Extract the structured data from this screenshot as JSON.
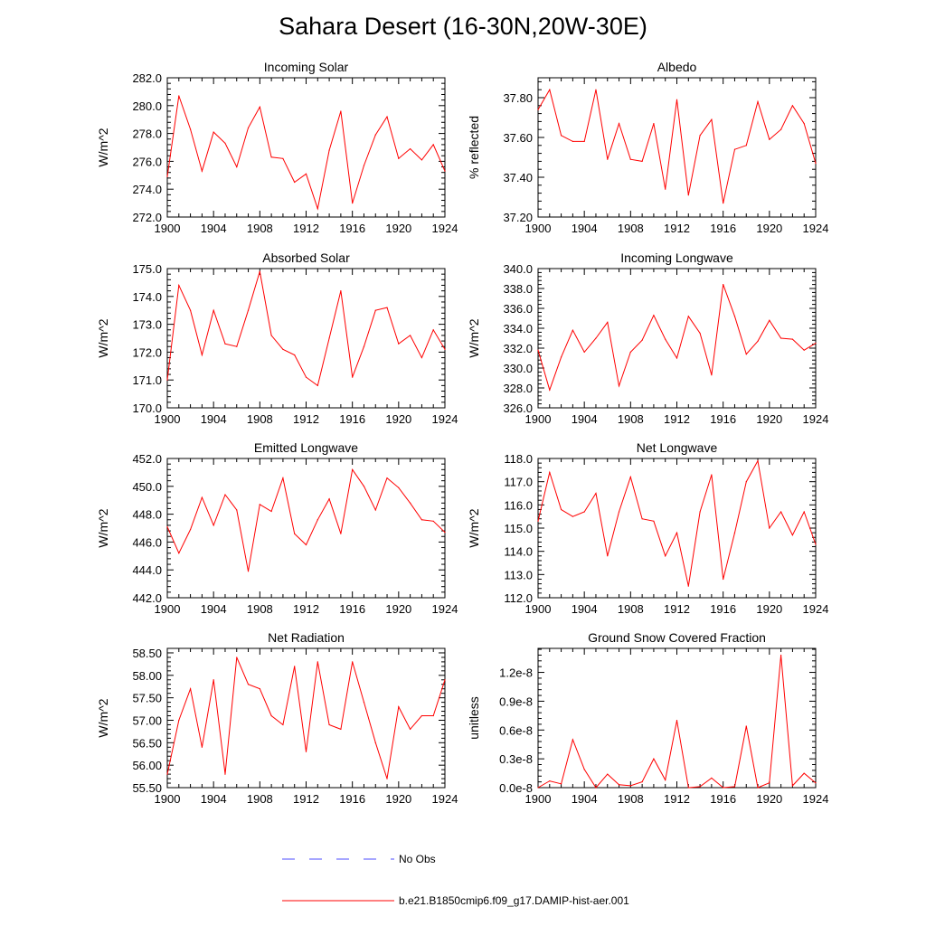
{
  "title": "Sahara Desert (16-30N,20W-30E)",
  "legend": {
    "no_obs_label": "No Obs",
    "model_label": "b.e21.B1850cmip6.f09_g17.DAMIP-hist-aer.001",
    "no_obs_color": "#4d4dff",
    "model_color": "#ff0000"
  },
  "chart_data": [
    {
      "type": "line",
      "title": "Incoming Solar",
      "ylabel": "W/m^2",
      "xlim": [
        1900,
        1924
      ],
      "ylim": [
        272.0,
        282.0
      ],
      "xticks": [
        "1900",
        "1904",
        "1908",
        "1912",
        "1916",
        "1920",
        "1924"
      ],
      "yticks": [
        "272.0",
        "274.0",
        "276.0",
        "278.0",
        "280.0",
        "282.0"
      ],
      "x": [
        1900,
        1901,
        1902,
        1903,
        1904,
        1905,
        1906,
        1907,
        1908,
        1909,
        1910,
        1911,
        1912,
        1913,
        1914,
        1915,
        1916,
        1917,
        1918,
        1919,
        1920,
        1921,
        1922,
        1923,
        1924
      ],
      "series": [
        {
          "values": [
            274.9,
            280.7,
            278.3,
            275.3,
            278.1,
            277.3,
            275.6,
            278.4,
            279.9,
            276.3,
            276.2,
            274.5,
            275.1,
            272.6,
            276.8,
            279.6,
            273.0,
            275.7,
            277.9,
            279.2,
            276.2,
            276.9,
            276.1,
            277.2,
            275.3
          ]
        }
      ]
    },
    {
      "type": "line",
      "title": "Albedo",
      "ylabel": "% reflected",
      "xlim": [
        1900,
        1924
      ],
      "ylim": [
        37.2,
        37.9
      ],
      "xticks": [
        "1900",
        "1904",
        "1908",
        "1912",
        "1916",
        "1920",
        "1924"
      ],
      "yticks": [
        "37.20",
        "37.40",
        "37.60",
        "37.80"
      ],
      "x": [
        1900,
        1901,
        1902,
        1903,
        1904,
        1905,
        1906,
        1907,
        1908,
        1909,
        1910,
        1911,
        1912,
        1913,
        1914,
        1915,
        1916,
        1917,
        1918,
        1919,
        1920,
        1921,
        1922,
        1923,
        1924
      ],
      "series": [
        {
          "values": [
            37.74,
            37.84,
            37.61,
            37.58,
            37.58,
            37.84,
            37.49,
            37.67,
            37.49,
            37.48,
            37.67,
            37.34,
            37.79,
            37.31,
            37.61,
            37.69,
            37.27,
            37.54,
            37.56,
            37.78,
            37.59,
            37.64,
            37.76,
            37.67,
            37.47
          ]
        }
      ]
    },
    {
      "type": "line",
      "title": "Absorbed Solar",
      "ylabel": "W/m^2",
      "xlim": [
        1900,
        1924
      ],
      "ylim": [
        170.0,
        175.0
      ],
      "xticks": [
        "1900",
        "1904",
        "1908",
        "1912",
        "1916",
        "1920",
        "1924"
      ],
      "yticks": [
        "170.0",
        "171.0",
        "172.0",
        "173.0",
        "174.0",
        "175.0"
      ],
      "x": [
        1900,
        1901,
        1902,
        1903,
        1904,
        1905,
        1906,
        1907,
        1908,
        1909,
        1910,
        1911,
        1912,
        1913,
        1914,
        1915,
        1916,
        1917,
        1918,
        1919,
        1920,
        1921,
        1922,
        1923,
        1924
      ],
      "series": [
        {
          "values": [
            171.0,
            174.4,
            173.5,
            171.9,
            173.5,
            172.3,
            172.2,
            173.5,
            174.9,
            172.6,
            172.1,
            171.9,
            171.1,
            170.8,
            172.5,
            174.2,
            171.1,
            172.2,
            173.5,
            173.6,
            172.3,
            172.6,
            171.8,
            172.8,
            172.1
          ]
        }
      ]
    },
    {
      "type": "line",
      "title": "Incoming Longwave",
      "ylabel": "W/m^2",
      "xlim": [
        1900,
        1924
      ],
      "ylim": [
        326.0,
        340.0
      ],
      "xticks": [
        "1900",
        "1904",
        "1908",
        "1912",
        "1916",
        "1920",
        "1924"
      ],
      "yticks": [
        "326.0",
        "328.0",
        "330.0",
        "332.0",
        "334.0",
        "336.0",
        "338.0",
        "340.0"
      ],
      "x": [
        1900,
        1901,
        1902,
        1903,
        1904,
        1905,
        1906,
        1907,
        1908,
        1909,
        1910,
        1911,
        1912,
        1913,
        1914,
        1915,
        1916,
        1917,
        1918,
        1919,
        1920,
        1921,
        1922,
        1923,
        1924
      ],
      "series": [
        {
          "values": [
            331.8,
            327.8,
            331.1,
            333.8,
            331.6,
            333.0,
            334.6,
            328.2,
            331.6,
            332.8,
            335.3,
            332.9,
            331.0,
            335.2,
            333.5,
            329.3,
            338.4,
            335.2,
            331.4,
            332.7,
            334.8,
            333.0,
            332.9,
            331.8,
            332.5
          ]
        }
      ]
    },
    {
      "type": "line",
      "title": "Emitted Longwave",
      "ylabel": "W/m^2",
      "xlim": [
        1900,
        1924
      ],
      "ylim": [
        442.0,
        452.0
      ],
      "xticks": [
        "1900",
        "1904",
        "1908",
        "1912",
        "1916",
        "1920",
        "1924"
      ],
      "yticks": [
        "442.0",
        "444.0",
        "446.0",
        "448.0",
        "450.0",
        "452.0"
      ],
      "x": [
        1900,
        1901,
        1902,
        1903,
        1904,
        1905,
        1906,
        1907,
        1908,
        1909,
        1910,
        1911,
        1912,
        1913,
        1914,
        1915,
        1916,
        1917,
        1918,
        1919,
        1920,
        1921,
        1922,
        1923,
        1924
      ],
      "series": [
        {
          "values": [
            447.1,
            445.2,
            446.9,
            449.2,
            447.2,
            449.4,
            448.3,
            443.9,
            448.7,
            448.2,
            450.6,
            446.6,
            445.8,
            447.6,
            449.1,
            446.6,
            451.2,
            450.0,
            448.3,
            450.6,
            449.9,
            448.8,
            447.6,
            447.5,
            446.7
          ]
        }
      ]
    },
    {
      "type": "line",
      "title": "Net Longwave",
      "ylabel": "W/m^2",
      "xlim": [
        1900,
        1924
      ],
      "ylim": [
        112.0,
        118.0
      ],
      "xticks": [
        "1900",
        "1904",
        "1908",
        "1912",
        "1916",
        "1920",
        "1924"
      ],
      "yticks": [
        "112.0",
        "113.0",
        "114.0",
        "115.0",
        "116.0",
        "117.0",
        "118.0"
      ],
      "x": [
        1900,
        1901,
        1902,
        1903,
        1904,
        1905,
        1906,
        1907,
        1908,
        1909,
        1910,
        1911,
        1912,
        1913,
        1914,
        1915,
        1916,
        1917,
        1918,
        1919,
        1920,
        1921,
        1922,
        1923,
        1924
      ],
      "series": [
        {
          "values": [
            115.3,
            117.4,
            115.8,
            115.5,
            115.7,
            116.5,
            113.8,
            115.7,
            117.2,
            115.4,
            115.3,
            113.8,
            114.8,
            112.5,
            115.7,
            117.3,
            112.8,
            114.8,
            117.0,
            117.9,
            115.0,
            115.7,
            114.7,
            115.7,
            114.3
          ]
        }
      ]
    },
    {
      "type": "line",
      "title": "Net Radiation",
      "ylabel": "W/m^2",
      "xlim": [
        1900,
        1924
      ],
      "ylim": [
        55.5,
        58.6
      ],
      "xticks": [
        "1900",
        "1904",
        "1908",
        "1912",
        "1916",
        "1920",
        "1924"
      ],
      "yticks": [
        "55.50",
        "56.00",
        "56.50",
        "57.00",
        "57.50",
        "58.00",
        "58.50"
      ],
      "x": [
        1900,
        1901,
        1902,
        1903,
        1904,
        1905,
        1906,
        1907,
        1908,
        1909,
        1910,
        1911,
        1912,
        1913,
        1914,
        1915,
        1916,
        1917,
        1918,
        1919,
        1920,
        1921,
        1922,
        1923,
        1924
      ],
      "series": [
        {
          "values": [
            55.8,
            57.0,
            57.7,
            56.4,
            57.9,
            55.8,
            58.4,
            57.8,
            57.7,
            57.1,
            56.9,
            58.2,
            56.3,
            58.3,
            56.9,
            56.8,
            58.3,
            57.4,
            56.5,
            55.7,
            57.3,
            56.8,
            57.1,
            57.1,
            57.9
          ]
        }
      ]
    },
    {
      "type": "line",
      "title": "Ground Snow Covered Fraction",
      "ylabel": "unitless",
      "xlim": [
        1900,
        1924
      ],
      "ylim": [
        0.0,
        1.45e-08
      ],
      "xticks": [
        "1900",
        "1904",
        "1908",
        "1912",
        "1916",
        "1920",
        "1924"
      ],
      "yticks": [
        "0.0e-8",
        "0.3e-8",
        "0.6e-8",
        "0.9e-8",
        "1.2e-8"
      ],
      "x": [
        1900,
        1901,
        1902,
        1903,
        1904,
        1905,
        1906,
        1907,
        1908,
        1909,
        1910,
        1911,
        1912,
        1913,
        1914,
        1915,
        1916,
        1917,
        1918,
        1919,
        1920,
        1921,
        1922,
        1923,
        1924
      ],
      "series": [
        {
          "values": [
            0.0,
            7e-10,
            4e-10,
            5e-09,
            1.9e-09,
            0.0,
            1.4e-09,
            3e-10,
            2e-10,
            6e-10,
            3e-09,
            8e-10,
            7e-09,
            0.0,
            1e-10,
            1e-09,
            0.0,
            1e-10,
            6.4e-09,
            0.0,
            5e-10,
            1.38e-08,
            2e-10,
            1.5e-09,
            5e-10
          ]
        }
      ]
    }
  ]
}
